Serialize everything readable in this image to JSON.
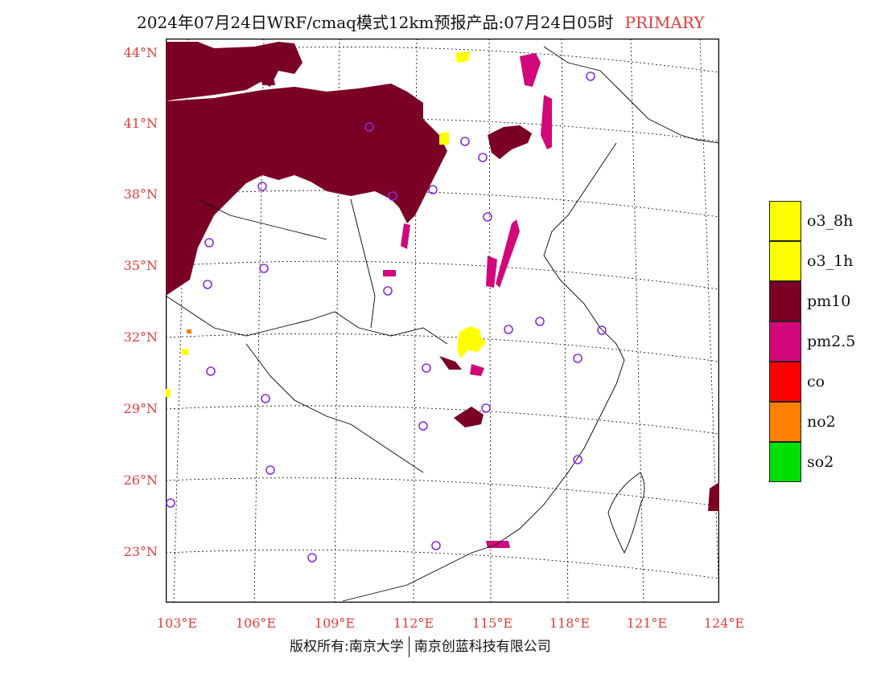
{
  "title": {
    "main": "2024年07月24日WRF/cmaq模式12km预报产品:07月24日05时",
    "tag": "PRIMARY"
  },
  "lat_labels": [
    "44°N",
    "41°N",
    "38°N",
    "35°N",
    "32°N",
    "29°N",
    "26°N",
    "23°N"
  ],
  "lon_labels": [
    "103°E",
    "106°E",
    "109°E",
    "112°E",
    "115°E",
    "118°E",
    "121°E",
    "124°E"
  ],
  "legend": [
    {
      "label": "o3_8h",
      "color": "#ffff00"
    },
    {
      "label": "o3_1h",
      "color": "#ffff00"
    },
    {
      "label": "pm10",
      "color": "#7a0026"
    },
    {
      "label": "pm2.5",
      "color": "#d1077a"
    },
    {
      "label": "co",
      "color": "#ff0000"
    },
    {
      "label": "no2",
      "color": "#ff7f00"
    },
    {
      "label": "so2",
      "color": "#00e000"
    }
  ],
  "credit": {
    "left": "版权所有:南京大学",
    "right": "南京创蓝科技有限公司"
  },
  "colors": {
    "pm10": "#7a0026",
    "pm25": "#d1077a",
    "o3": "#ffff00",
    "station": "#8a2be2",
    "axis_label": "#e03b3b"
  }
}
